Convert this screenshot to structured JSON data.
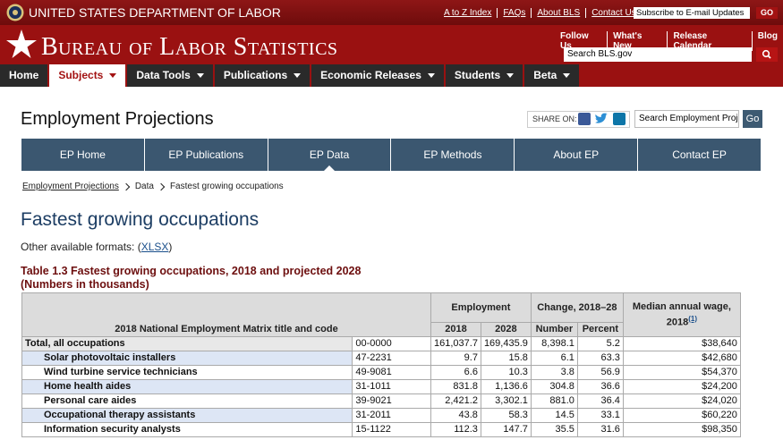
{
  "header": {
    "agency": "UNITED STATES DEPARTMENT OF LABOR",
    "top_links": [
      "A to Z Index",
      "FAQs",
      "About BLS",
      "Contact Us"
    ],
    "subscribe": "Subscribe to E-mail Updates",
    "go": "GO",
    "bls_title": "Bureau of Labor Statistics",
    "follow_links": [
      "Follow Us",
      "What's New",
      "Release Calendar",
      "Blog"
    ],
    "search_placeholder": "Search BLS.gov"
  },
  "nav": [
    "Home",
    "Subjects",
    "Data Tools",
    "Publications",
    "Economic Releases",
    "Students",
    "Beta"
  ],
  "section": {
    "title": "Employment Projections",
    "share": "SHARE ON:",
    "search_placeholder": "Search Employment Proj",
    "go": "Go",
    "tabs": [
      "EP Home",
      "EP Publications",
      "EP Data",
      "EP Methods",
      "About EP",
      "Contact EP"
    ]
  },
  "breadcrumb": [
    "Employment Projections",
    "Data",
    "Fastest growing occupations"
  ],
  "content": {
    "heading": "Fastest growing occupations",
    "formats_prefix": "Other available formats: (",
    "formats_link": "XLSX",
    "formats_suffix": ")",
    "caption": "Table 1.3 Fastest growing occupations, 2018 and projected 2028",
    "caption_note": "(Numbers in thousands)"
  },
  "table": {
    "header": {
      "title": "2018 National Employment Matrix title and code",
      "employment": "Employment",
      "change": "Change, 2018–28",
      "wage": "Median annual wage, 2018",
      "wage_note": "(1)",
      "sub": [
        "2018",
        "2028",
        "Number",
        "Percent"
      ]
    },
    "rows": [
      [
        "Total, all occupations",
        "00-0000",
        "161,037.7",
        "169,435.9",
        "8,398.1",
        "5.2",
        "$38,640"
      ],
      [
        "Solar photovoltaic installers",
        "47-2231",
        "9.7",
        "15.8",
        "6.1",
        "63.3",
        "$42,680"
      ],
      [
        "Wind turbine service technicians",
        "49-9081",
        "6.6",
        "10.3",
        "3.8",
        "56.9",
        "$54,370"
      ],
      [
        "Home health aides",
        "31-1011",
        "831.8",
        "1,136.6",
        "304.8",
        "36.6",
        "$24,200"
      ],
      [
        "Personal care aides",
        "39-9021",
        "2,421.2",
        "3,302.1",
        "881.0",
        "36.4",
        "$24,020"
      ],
      [
        "Occupational therapy assistants",
        "31-2011",
        "43.8",
        "58.3",
        "14.5",
        "33.1",
        "$60,220"
      ],
      [
        "Information security analysts",
        "15-1122",
        "112.3",
        "147.7",
        "35.5",
        "31.6",
        "$98,350"
      ]
    ]
  }
}
